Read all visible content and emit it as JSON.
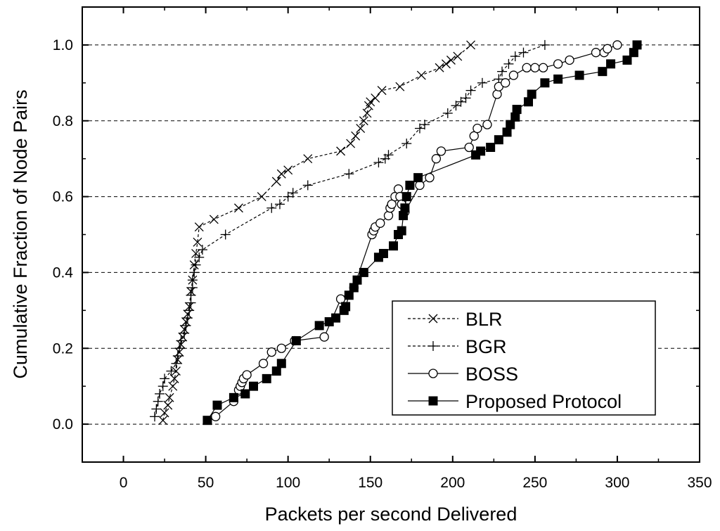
{
  "chart_data": {
    "type": "line",
    "title": "",
    "xlabel": "Packets per second Delivered",
    "ylabel": "Cumulative Fraction of Node Pairs",
    "xlim": [
      -25,
      350
    ],
    "ylim": [
      -0.1,
      1.1
    ],
    "xticks": [
      0,
      50,
      100,
      150,
      200,
      250,
      300,
      350
    ],
    "yticks": [
      0.0,
      0.2,
      0.4,
      0.6,
      0.8,
      1.0
    ],
    "xtick_labels": [
      "0",
      "50",
      "100",
      "150",
      "200",
      "250",
      "300",
      "350"
    ],
    "ytick_labels": [
      "0.0",
      "0.2",
      "0.4",
      "0.6",
      "0.8",
      "1.0"
    ],
    "horizontal_dashed_gridlines": true,
    "legend_position": "lower-right",
    "series": [
      {
        "name": "BLR",
        "marker": "x",
        "line_style": "dashed",
        "points": [
          [
            24,
            0.01
          ],
          [
            25,
            0.03
          ],
          [
            27,
            0.05
          ],
          [
            28,
            0.07
          ],
          [
            30,
            0.1
          ],
          [
            31,
            0.12
          ],
          [
            32,
            0.14
          ],
          [
            33,
            0.17
          ],
          [
            34,
            0.19
          ],
          [
            35,
            0.21
          ],
          [
            36,
            0.23
          ],
          [
            37,
            0.25
          ],
          [
            38,
            0.27
          ],
          [
            39,
            0.29
          ],
          [
            40,
            0.31
          ],
          [
            41,
            0.35
          ],
          [
            42,
            0.38
          ],
          [
            43,
            0.42
          ],
          [
            44,
            0.45
          ],
          [
            45,
            0.48
          ],
          [
            46,
            0.52
          ],
          [
            55,
            0.54
          ],
          [
            70,
            0.57
          ],
          [
            84,
            0.6
          ],
          [
            93,
            0.64
          ],
          [
            96,
            0.66
          ],
          [
            100,
            0.67
          ],
          [
            112,
            0.7
          ],
          [
            132,
            0.72
          ],
          [
            138,
            0.74
          ],
          [
            141,
            0.76
          ],
          [
            144,
            0.78
          ],
          [
            146,
            0.8
          ],
          [
            148,
            0.82
          ],
          [
            149,
            0.84
          ],
          [
            150,
            0.85
          ],
          [
            153,
            0.86
          ],
          [
            157,
            0.88
          ],
          [
            168,
            0.89
          ],
          [
            181,
            0.92
          ],
          [
            192,
            0.94
          ],
          [
            196,
            0.95
          ],
          [
            199,
            0.96
          ],
          [
            203,
            0.97
          ],
          [
            211,
            1.0
          ]
        ]
      },
      {
        "name": "BGR",
        "marker": "+",
        "line_style": "dashed",
        "points": [
          [
            19,
            0.02
          ],
          [
            20,
            0.04
          ],
          [
            21,
            0.06
          ],
          [
            22,
            0.08
          ],
          [
            24,
            0.1
          ],
          [
            25,
            0.12
          ],
          [
            29,
            0.14
          ],
          [
            32,
            0.16
          ],
          [
            33,
            0.18
          ],
          [
            34,
            0.2
          ],
          [
            35,
            0.22
          ],
          [
            37,
            0.24
          ],
          [
            38,
            0.26
          ],
          [
            39,
            0.28
          ],
          [
            40,
            0.3
          ],
          [
            41,
            0.32
          ],
          [
            41,
            0.34
          ],
          [
            42,
            0.36
          ],
          [
            42,
            0.38
          ],
          [
            43,
            0.4
          ],
          [
            44,
            0.42
          ],
          [
            46,
            0.44
          ],
          [
            48,
            0.46
          ],
          [
            62,
            0.5
          ],
          [
            90,
            0.57
          ],
          [
            95,
            0.58
          ],
          [
            100,
            0.6
          ],
          [
            103,
            0.61
          ],
          [
            112,
            0.63
          ],
          [
            137,
            0.66
          ],
          [
            155,
            0.69
          ],
          [
            159,
            0.7
          ],
          [
            161,
            0.71
          ],
          [
            172,
            0.74
          ],
          [
            180,
            0.78
          ],
          [
            183,
            0.79
          ],
          [
            197,
            0.82
          ],
          [
            202,
            0.84
          ],
          [
            205,
            0.85
          ],
          [
            208,
            0.86
          ],
          [
            211,
            0.88
          ],
          [
            218,
            0.9
          ],
          [
            228,
            0.91
          ],
          [
            230,
            0.93
          ],
          [
            234,
            0.95
          ],
          [
            238,
            0.97
          ],
          [
            243,
            0.98
          ],
          [
            256,
            1.0
          ]
        ]
      },
      {
        "name": "BOSS",
        "marker": "circle-open",
        "line_style": "solid",
        "points": [
          [
            56,
            0.02
          ],
          [
            67,
            0.06
          ],
          [
            70,
            0.09
          ],
          [
            71,
            0.1
          ],
          [
            72,
            0.11
          ],
          [
            73,
            0.12
          ],
          [
            75,
            0.13
          ],
          [
            85,
            0.16
          ],
          [
            90,
            0.19
          ],
          [
            96,
            0.2
          ],
          [
            104,
            0.22
          ],
          [
            122,
            0.23
          ],
          [
            132,
            0.33
          ],
          [
            140,
            0.36
          ],
          [
            151,
            0.5
          ],
          [
            152,
            0.51
          ],
          [
            153,
            0.52
          ],
          [
            156,
            0.53
          ],
          [
            161,
            0.55
          ],
          [
            162,
            0.57
          ],
          [
            163,
            0.58
          ],
          [
            165,
            0.6
          ],
          [
            167,
            0.62
          ],
          [
            168,
            0.6
          ],
          [
            169,
            0.58
          ],
          [
            171,
            0.56
          ],
          [
            180,
            0.63
          ],
          [
            186,
            0.65
          ],
          [
            190,
            0.7
          ],
          [
            193,
            0.72
          ],
          [
            210,
            0.73
          ],
          [
            213,
            0.76
          ],
          [
            215,
            0.78
          ],
          [
            221,
            0.79
          ],
          [
            227,
            0.87
          ],
          [
            228,
            0.89
          ],
          [
            232,
            0.9
          ],
          [
            237,
            0.92
          ],
          [
            245,
            0.94
          ],
          [
            250,
            0.94
          ],
          [
            255,
            0.94
          ],
          [
            264,
            0.95
          ],
          [
            271,
            0.96
          ],
          [
            287,
            0.98
          ],
          [
            292,
            0.98
          ],
          [
            294,
            0.99
          ],
          [
            300,
            1.0
          ]
        ]
      },
      {
        "name": "Proposed Protocol",
        "marker": "square-filled",
        "line_style": "solid",
        "points": [
          [
            51,
            0.01
          ],
          [
            57,
            0.05
          ],
          [
            67,
            0.07
          ],
          [
            74,
            0.08
          ],
          [
            79,
            0.1
          ],
          [
            87,
            0.12
          ],
          [
            93,
            0.14
          ],
          [
            96,
            0.16
          ],
          [
            105,
            0.22
          ],
          [
            119,
            0.26
          ],
          [
            125,
            0.27
          ],
          [
            129,
            0.28
          ],
          [
            134,
            0.3
          ],
          [
            135,
            0.31
          ],
          [
            137,
            0.34
          ],
          [
            140,
            0.36
          ],
          [
            142,
            0.38
          ],
          [
            146,
            0.4
          ],
          [
            155,
            0.44
          ],
          [
            158,
            0.45
          ],
          [
            164,
            0.47
          ],
          [
            167,
            0.5
          ],
          [
            169,
            0.51
          ],
          [
            170,
            0.55
          ],
          [
            171,
            0.57
          ],
          [
            172,
            0.6
          ],
          [
            174,
            0.63
          ],
          [
            179,
            0.65
          ],
          [
            214,
            0.71
          ],
          [
            217,
            0.72
          ],
          [
            223,
            0.73
          ],
          [
            228,
            0.75
          ],
          [
            233,
            0.77
          ],
          [
            235,
            0.79
          ],
          [
            238,
            0.81
          ],
          [
            239,
            0.83
          ],
          [
            246,
            0.85
          ],
          [
            248,
            0.87
          ],
          [
            256,
            0.9
          ],
          [
            264,
            0.91
          ],
          [
            277,
            0.92
          ],
          [
            291,
            0.93
          ],
          [
            296,
            0.95
          ],
          [
            306,
            0.96
          ],
          [
            310,
            0.98
          ],
          [
            312,
            1.0
          ]
        ]
      }
    ]
  }
}
